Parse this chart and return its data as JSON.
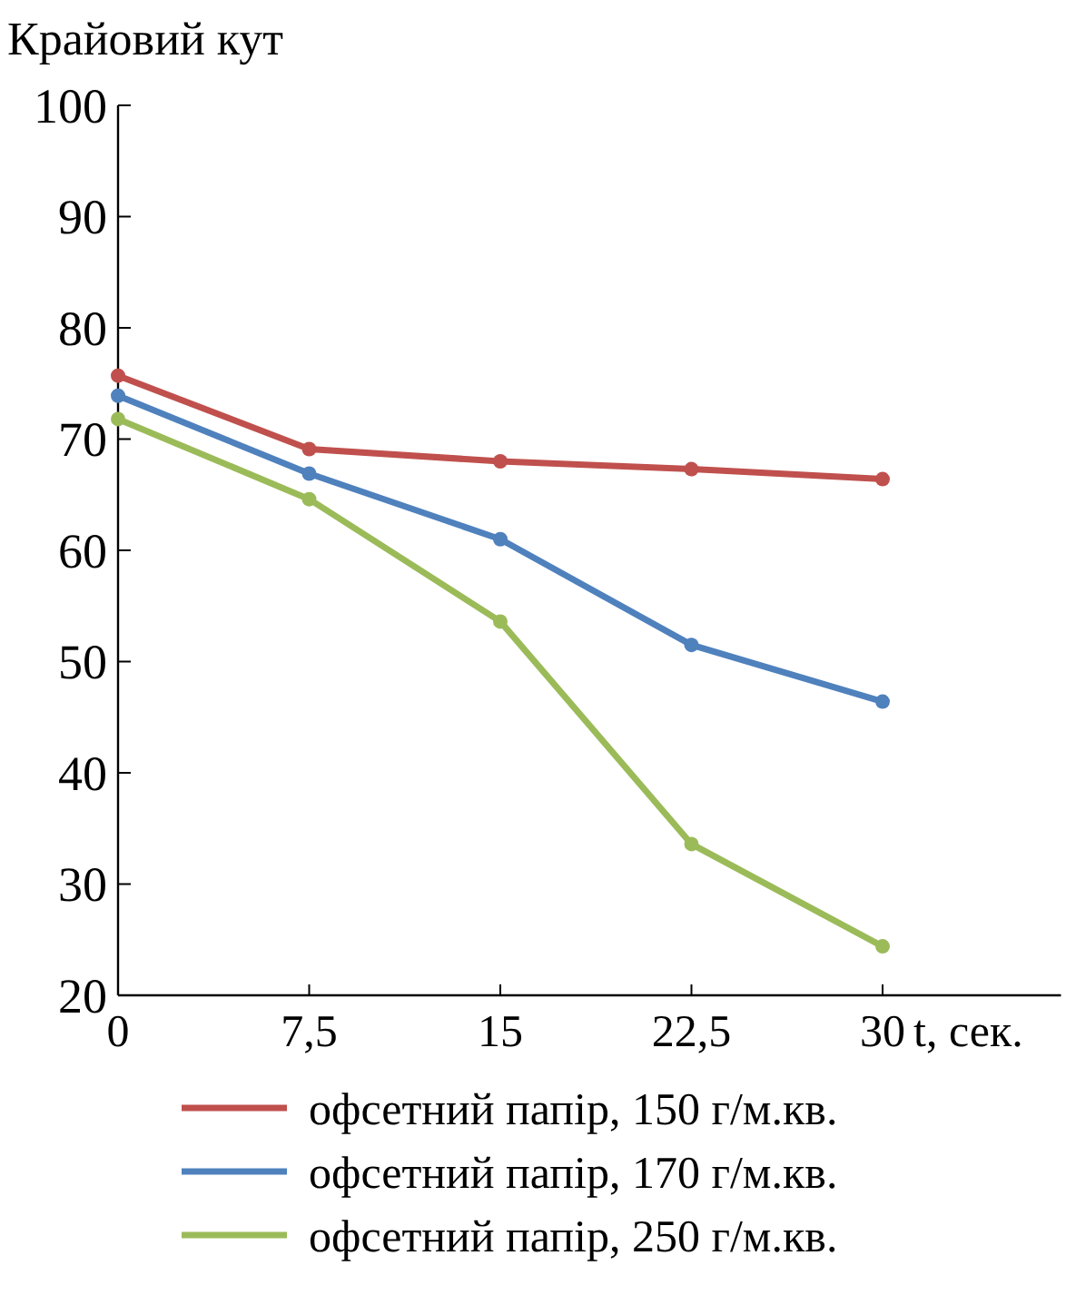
{
  "chart_data": {
    "type": "line",
    "ylabel": "Крайовий кут",
    "xlabel": "t, сек.",
    "x": [
      0,
      7.5,
      15,
      22.5,
      30
    ],
    "xlim": [
      0,
      37
    ],
    "xticks": [
      0,
      {
        "value": 7.5,
        "label": "7,5"
      },
      15,
      {
        "value": 22.5,
        "label": "22,5"
      },
      30
    ],
    "ylim": [
      20,
      100
    ],
    "yticks": [
      20,
      30,
      40,
      50,
      60,
      70,
      80,
      90,
      100
    ],
    "series": [
      {
        "name": "офсетний папір, 150 г/м.кв.",
        "color": "#c0504d",
        "values": [
          75.7,
          69.1,
          68,
          67.3,
          66.4
        ]
      },
      {
        "name": "офсетний папір, 170 г/м.кв.",
        "color": "#4f81bd",
        "values": [
          73.9,
          66.9,
          61,
          51.5,
          46.4
        ]
      },
      {
        "name": "офсетний папір, 250 г/м.кв.",
        "color": "#9bbb59",
        "values": [
          71.8,
          64.6,
          53.6,
          33.6,
          24.4
        ]
      }
    ],
    "marker": "circle",
    "line_style": "solid",
    "grid": false,
    "legend": "bottom"
  }
}
